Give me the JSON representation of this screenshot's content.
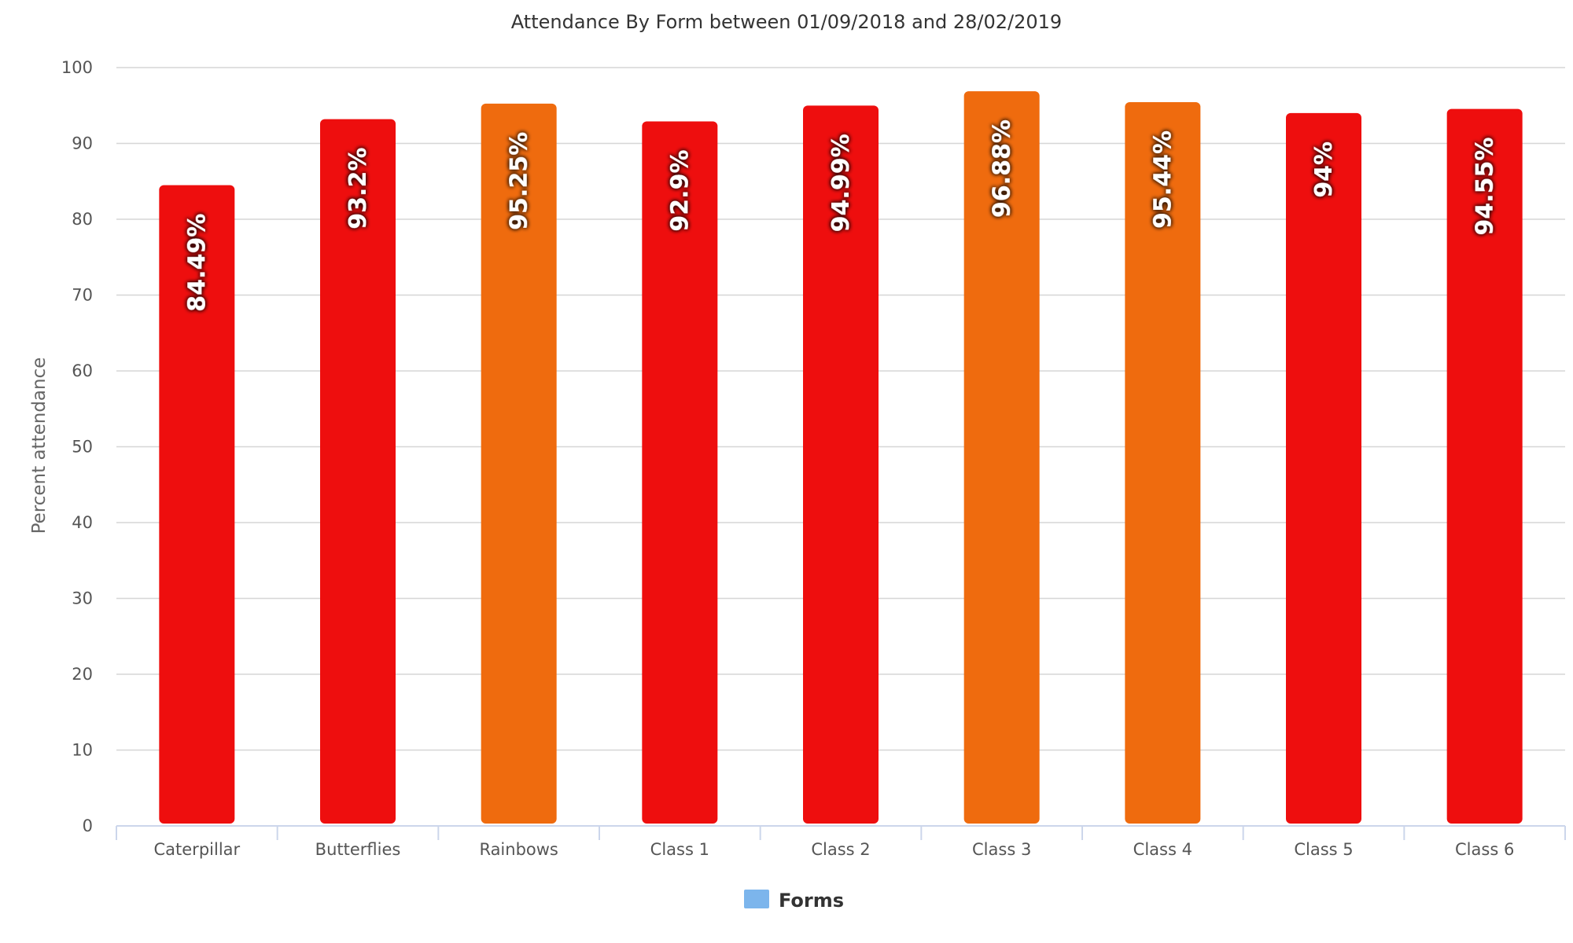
{
  "chart_data": {
    "type": "bar",
    "title": "Attendance By Form between 01/09/2018 and 28/02/2019",
    "ylabel": "Percent attendance",
    "xlabel": "",
    "ylim": [
      0,
      100
    ],
    "yticks": [
      0,
      10,
      20,
      30,
      40,
      50,
      60,
      70,
      80,
      90,
      100
    ],
    "grid": true,
    "legend_position": "bottom-center",
    "legend": [
      {
        "label": "Forms",
        "color": "#7cb5ec"
      }
    ],
    "categories": [
      "Caterpillar",
      "Butterflies",
      "Rainbows",
      "Class 1",
      "Class 2",
      "Class 3",
      "Class 4",
      "Class 5",
      "Class 6"
    ],
    "values": [
      84.49,
      93.2,
      95.25,
      92.9,
      94.99,
      96.88,
      95.44,
      94,
      94.55
    ],
    "data_labels": [
      "84.49%",
      "93.2%",
      "95.25%",
      "92.9%",
      "94.99%",
      "96.88%",
      "95.44%",
      "94%",
      "94.55%"
    ],
    "bar_colors": [
      "#ee0e0e",
      "#ee0e0e",
      "#ef6b0e",
      "#ee0e0e",
      "#ee0e0e",
      "#ef6b0e",
      "#ef6b0e",
      "#ee0e0e",
      "#ee0e0e"
    ]
  }
}
